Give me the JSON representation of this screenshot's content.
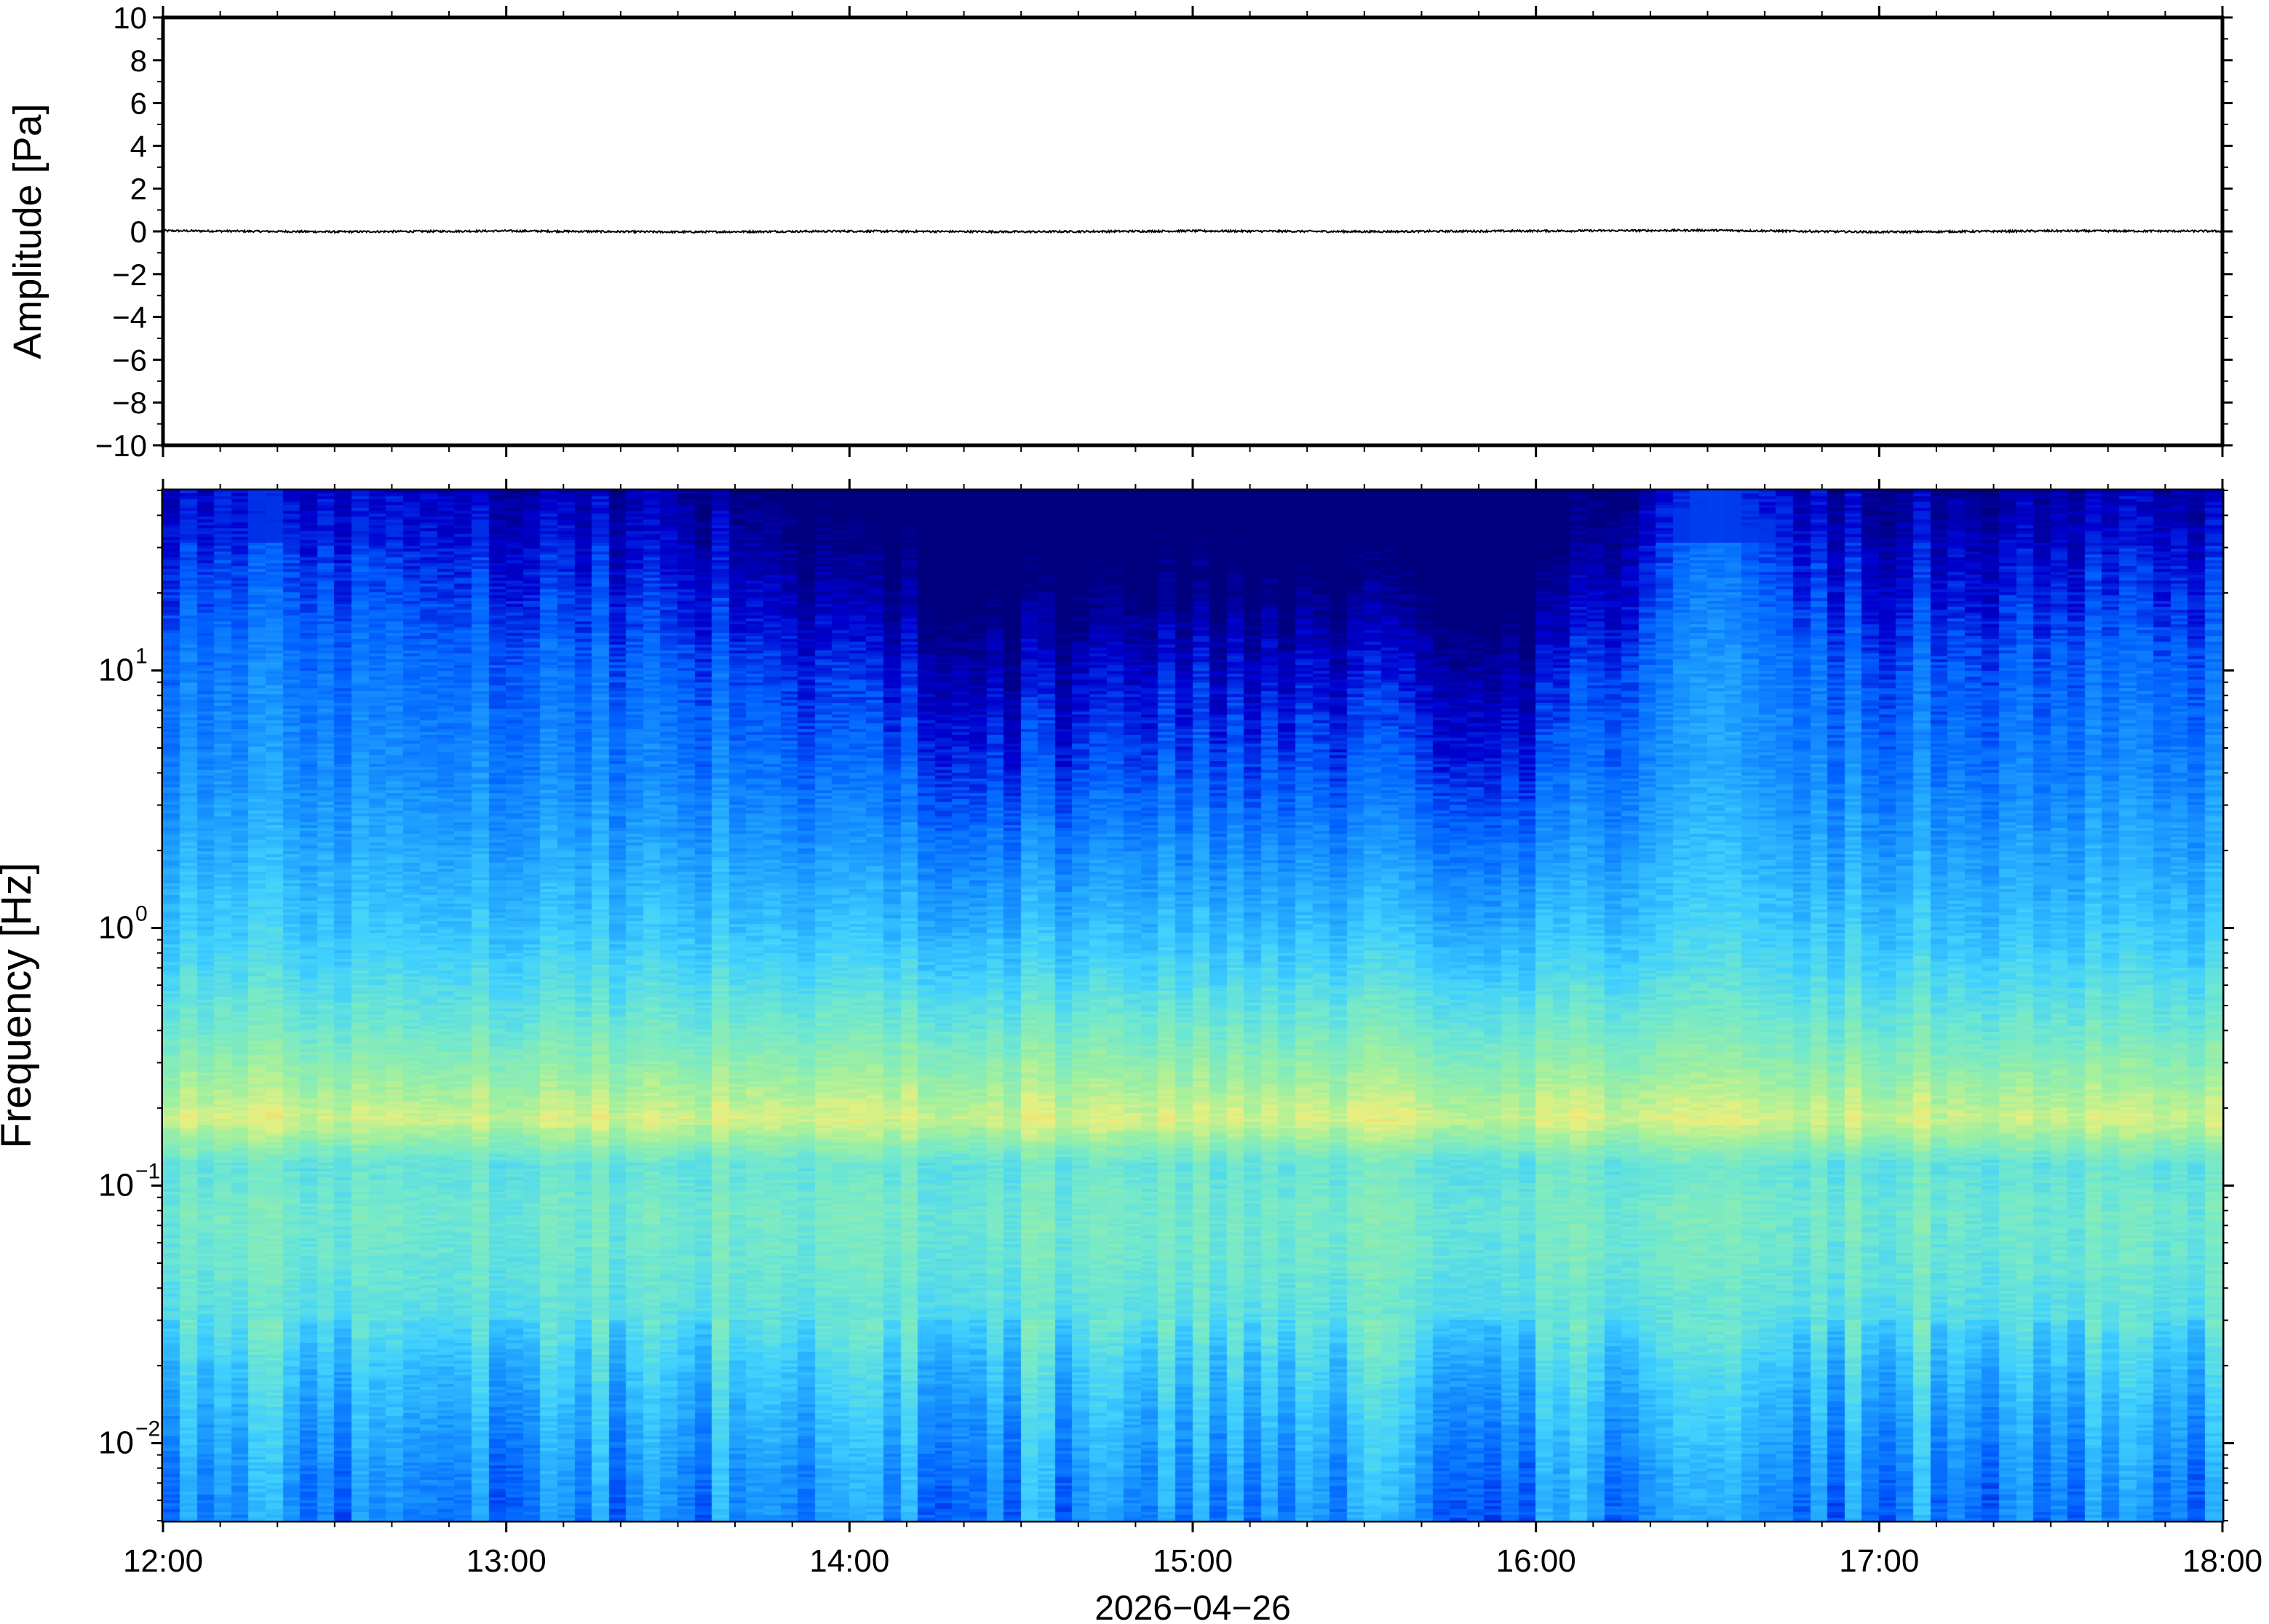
{
  "chart_data": [
    {
      "type": "line",
      "ylabel": "Amplitude [Pa]",
      "ylim": [
        -10,
        10
      ],
      "yticks": [
        10,
        8,
        6,
        4,
        2,
        0,
        -2,
        -4,
        -6,
        -8,
        -10
      ],
      "ytick_labels": [
        "10",
        "8",
        "6",
        "4",
        "2",
        "0",
        "−2",
        "−4",
        "−6",
        "−8",
        "−10"
      ],
      "xlim": [
        "2026-04-26T12:00",
        "2026-04-26T18:00"
      ],
      "series": [
        {
          "x": [
            "12:00",
            "12:30",
            "13:00",
            "13:30",
            "14:00",
            "14:30",
            "15:00",
            "15:30",
            "16:00",
            "16:30",
            "17:00",
            "17:30",
            "18:00"
          ],
          "values": [
            0.03,
            -0.02,
            0.02,
            -0.03,
            0.01,
            -0.02,
            0.02,
            -0.01,
            0.02,
            0.05,
            -0.03,
            0.02,
            0.01
          ],
          "color": "#000000"
        }
      ],
      "grid": false
    },
    {
      "type": "heatmap",
      "ylabel": "Frequency [Hz]",
      "yscale": "log",
      "ylim": [
        0.005,
        50
      ],
      "yticks": [
        0.01,
        0.1,
        1,
        10
      ],
      "ytick_labels": [
        {
          "base": "10",
          "exp": "−2"
        },
        {
          "base": "10",
          "exp": "−1"
        },
        {
          "base": "10",
          "exp": "0"
        },
        {
          "base": "10",
          "exp": "1"
        }
      ],
      "xlabel": "2026−04−26",
      "x_tick_labels": [
        "12:00",
        "13:00",
        "14:00",
        "15:00",
        "16:00",
        "17:00",
        "18:00"
      ],
      "xlim": [
        "2026-04-26T12:00",
        "2026-04-26T18:00"
      ],
      "colormap": [
        "#00007f",
        "#0000d0",
        "#0060ff",
        "#1ea0ff",
        "#40d0ff",
        "#70e8d0",
        "#a0f0a0",
        "#e8f080",
        "#ffc060"
      ],
      "color_levels": [
        0,
        0.1,
        0.2,
        0.33,
        0.45,
        0.58,
        0.72,
        0.85,
        1.0
      ],
      "relative_power_profile": {
        "frequency_hz": [
          0.005,
          0.008,
          0.012,
          0.02,
          0.03,
          0.05,
          0.08,
          0.12,
          0.15,
          0.18,
          0.25,
          0.4,
          0.7,
          1.0,
          2,
          4,
          10,
          20,
          40,
          50
        ],
        "level": [
          0.3,
          0.33,
          0.38,
          0.45,
          0.53,
          0.58,
          0.6,
          0.56,
          0.7,
          0.82,
          0.72,
          0.6,
          0.48,
          0.42,
          0.33,
          0.25,
          0.18,
          0.1,
          0.03,
          0.01
        ]
      },
      "activity_by_time": {
        "time": [
          "12:00",
          "12:30",
          "13:00",
          "13:30",
          "14:00",
          "14:30",
          "15:00",
          "15:30",
          "16:00",
          "16:30",
          "17:00",
          "17:30",
          "18:00"
        ],
        "level": [
          0.75,
          0.78,
          0.72,
          0.65,
          0.4,
          0.25,
          0.35,
          0.3,
          0.28,
          0.9,
          0.62,
          0.68,
          0.7
        ]
      }
    }
  ]
}
